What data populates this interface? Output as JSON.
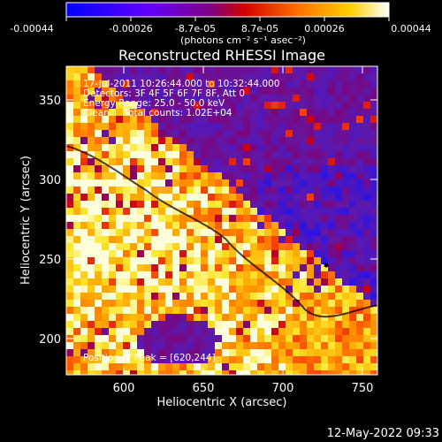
{
  "figure": {
    "title": "Reconstructed RHESSI Image",
    "info_lines": [
      "17-Jul-2011 10:26:44.000 to 10:32:44.000",
      "Detectors: 3F 4F 5F 6F 7F 8F, Att 0",
      "Energy Range: 25.0 - 50.0 keV",
      "Clean     Total counts: 1.02E+04"
    ],
    "peak_text": "Position of Peak = [620,244]",
    "xlabel": "Heliocentric X (arcsec)",
    "ylabel": "Heliocentric Y (arcsec)",
    "x_ticks": [
      "600",
      "650",
      "700",
      "750"
    ],
    "y_ticks": [
      "200",
      "250",
      "300",
      "350"
    ],
    "timestamp": "12-May-2022 09:33"
  },
  "colorbar": {
    "tick_labels": [
      "-0.00044",
      "-0.00026",
      "-8.7e-05",
      "8.7e-05",
      "0.00026",
      "0.00044"
    ],
    "unit_label": "(photons cm⁻² s⁻¹ asec⁻²)",
    "colors": [
      "#0000ff",
      "#5000ff",
      "#a000a0",
      "#ff0000",
      "#ff8000",
      "#ffff00",
      "#ffffff"
    ]
  }
}
